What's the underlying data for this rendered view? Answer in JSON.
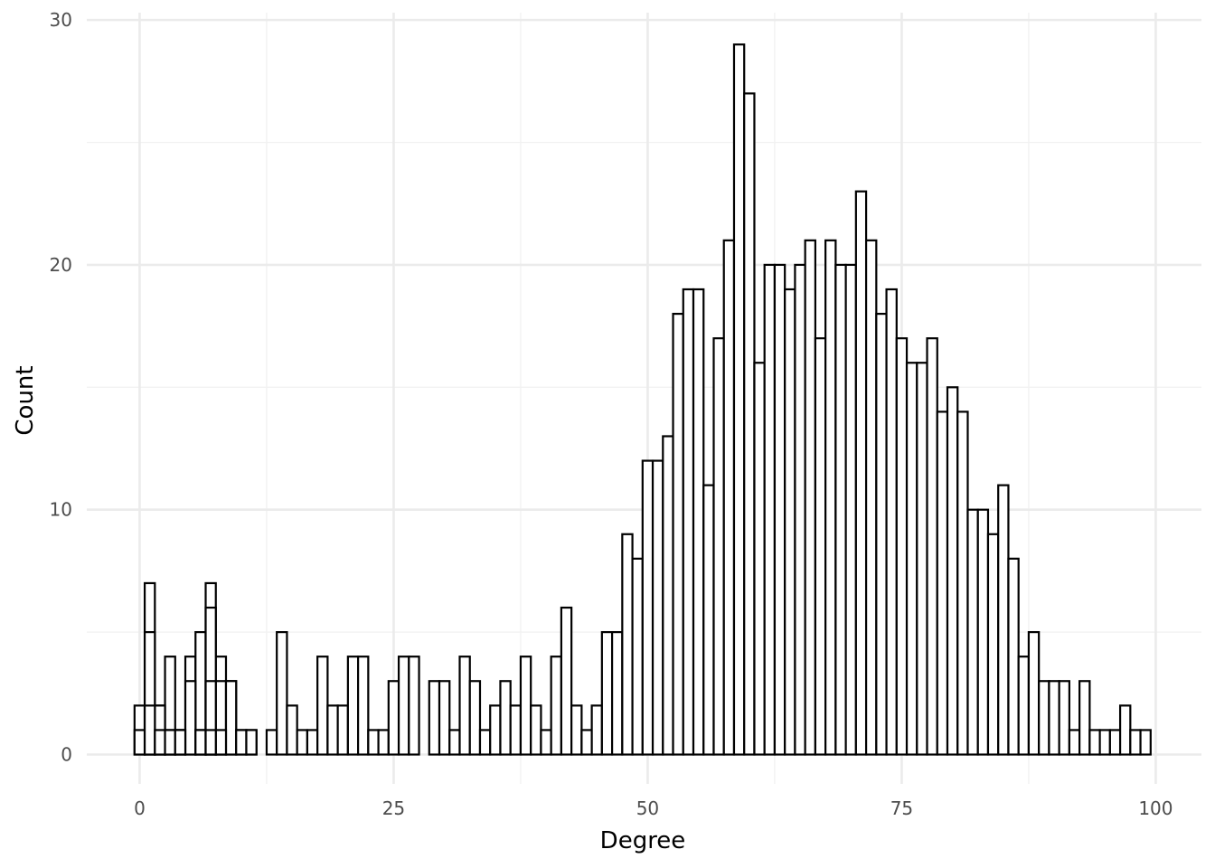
{
  "chart_data": {
    "type": "bar",
    "subtype": "histogram",
    "xlabel": "Degree",
    "ylabel": "Count",
    "xlim": [
      -5.2,
      104.5
    ],
    "ylim": [
      -1.2,
      30.3
    ],
    "x_ticks": [
      0,
      25,
      50,
      75,
      100
    ],
    "x_minor_ticks": [
      12.5,
      37.5,
      62.5,
      87.5
    ],
    "y_ticks": [
      0,
      10,
      20,
      30
    ],
    "y_minor_ticks": [
      5,
      15,
      25
    ],
    "grid": true,
    "legend": "none",
    "bar_fill": "#ffffff",
    "bar_stroke": "#000000",
    "bin_width": 1,
    "series": [
      {
        "values": [
          [
            -0.5,
            2
          ],
          [
            0.5,
            7
          ],
          [
            1.5,
            2
          ],
          [
            2.5,
            4
          ],
          [
            3.5,
            1
          ],
          [
            4.5,
            4
          ],
          [
            5.5,
            5
          ],
          [
            6.5,
            7
          ],
          [
            7.5,
            4
          ],
          [
            8.5,
            3
          ],
          [
            9.5,
            1
          ],
          [
            10.5,
            1
          ],
          [
            12.5,
            1
          ],
          [
            13.5,
            5
          ],
          [
            14.5,
            2
          ],
          [
            15.5,
            1
          ],
          [
            16.5,
            1
          ],
          [
            17.5,
            4
          ],
          [
            18.5,
            2
          ],
          [
            19.5,
            2
          ],
          [
            20.5,
            4
          ],
          [
            21.5,
            4
          ],
          [
            22.5,
            1
          ],
          [
            23.5,
            1
          ],
          [
            24.5,
            3
          ],
          [
            25.5,
            4
          ],
          [
            26.5,
            4
          ],
          [
            28.5,
            3
          ],
          [
            29.5,
            3
          ],
          [
            30.5,
            1
          ],
          [
            31.5,
            4
          ],
          [
            32.5,
            3
          ],
          [
            33.5,
            1
          ],
          [
            34.5,
            2
          ],
          [
            35.5,
            3
          ],
          [
            36.5,
            2
          ],
          [
            37.5,
            4
          ],
          [
            38.5,
            2
          ],
          [
            39.5,
            1
          ],
          [
            40.5,
            4
          ],
          [
            41.5,
            6
          ],
          [
            42.5,
            2
          ],
          [
            43.5,
            1
          ],
          [
            44.5,
            2
          ],
          [
            45.5,
            5
          ],
          [
            46.5,
            5
          ],
          [
            47.5,
            9
          ],
          [
            48.5,
            8
          ],
          [
            49.5,
            12
          ],
          [
            50.5,
            12
          ],
          [
            51.5,
            13
          ],
          [
            52.5,
            18
          ],
          [
            53.5,
            19
          ],
          [
            54.5,
            19
          ],
          [
            55.5,
            11
          ],
          [
            56.5,
            17
          ],
          [
            57.5,
            21
          ],
          [
            58.5,
            29
          ],
          [
            59.5,
            27
          ],
          [
            60.5,
            16
          ],
          [
            61.5,
            20
          ],
          [
            62.5,
            20
          ],
          [
            63.5,
            19
          ],
          [
            64.5,
            20
          ],
          [
            65.5,
            21
          ],
          [
            66.5,
            17
          ],
          [
            67.5,
            21
          ],
          [
            68.5,
            20
          ],
          [
            69.5,
            20
          ],
          [
            70.5,
            23
          ],
          [
            71.5,
            21
          ],
          [
            72.5,
            18
          ],
          [
            73.5,
            19
          ],
          [
            74.5,
            17
          ],
          [
            75.5,
            16
          ],
          [
            76.5,
            16
          ],
          [
            77.5,
            17
          ],
          [
            78.5,
            14
          ],
          [
            79.5,
            15
          ],
          [
            80.5,
            14
          ],
          [
            81.5,
            10
          ],
          [
            82.5,
            10
          ],
          [
            83.5,
            9
          ],
          [
            84.5,
            11
          ],
          [
            85.5,
            8
          ],
          [
            86.5,
            4
          ],
          [
            87.5,
            5
          ],
          [
            88.5,
            3
          ],
          [
            89.5,
            3
          ],
          [
            90.5,
            3
          ],
          [
            91.5,
            1
          ],
          [
            92.5,
            3
          ],
          [
            93.5,
            1
          ],
          [
            94.5,
            1
          ],
          [
            95.5,
            1
          ],
          [
            96.5,
            2
          ],
          [
            97.5,
            1
          ],
          [
            98.5,
            1
          ]
        ]
      },
      {
        "values": [
          [
            -0.5,
            1
          ],
          [
            0.5,
            5
          ],
          [
            1.5,
            2
          ],
          [
            2.5,
            1
          ],
          [
            3.5,
            1
          ],
          [
            4.5,
            3
          ],
          [
            5.5,
            1
          ],
          [
            6.5,
            6
          ],
          [
            7.5,
            3
          ],
          [
            8.5,
            3
          ],
          [
            9.5,
            1
          ],
          [
            10.5,
            1
          ]
        ]
      },
      {
        "values": [
          [
            -0.5,
            0
          ],
          [
            0.5,
            2
          ],
          [
            1.5,
            1
          ],
          [
            2.5,
            1
          ],
          [
            3.5,
            1
          ],
          [
            4.5,
            0
          ],
          [
            5.5,
            1
          ],
          [
            6.5,
            3
          ],
          [
            7.5,
            1
          ],
          [
            8.5,
            0
          ]
        ]
      },
      {
        "values": [
          [
            5.5,
            0
          ],
          [
            6.5,
            1
          ],
          [
            7.5,
            0
          ]
        ]
      }
    ]
  }
}
